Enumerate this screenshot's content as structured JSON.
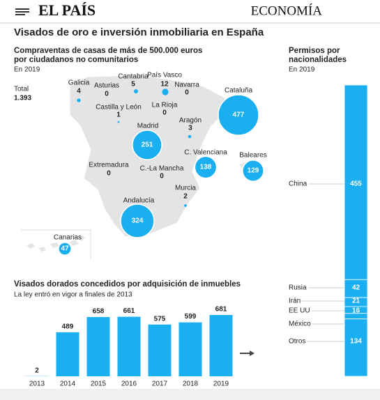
{
  "header": {
    "logo": "EL PAÍS",
    "section": "ECONOMÍA"
  },
  "title": "Visados de oro e inversión inmobiliaria en España",
  "chart_data": [
    {
      "type": "bubble-map",
      "title": "Compraventas de casas de más de 500.000 euros por ciudadanos no comunitarios",
      "subtitle": "En 2019",
      "total": {
        "label": "Total",
        "value": 1393,
        "value_label": "1.393"
      },
      "categories": [
        "Galicia",
        "Asturias",
        "Cantabria",
        "País Vasco",
        "Navarra",
        "Cataluña",
        "Castilla y León",
        "La Rioja",
        "Aragón",
        "Madrid",
        "C. Valenciana",
        "Baleares",
        "Extremadura",
        "C.-La Mancha",
        "Murcia",
        "Andalucía",
        "Canarias"
      ],
      "values": [
        4,
        0,
        5,
        12,
        0,
        477,
        1,
        0,
        3,
        251,
        138,
        129,
        0,
        0,
        2,
        324,
        47
      ],
      "color": "#1aaff0"
    },
    {
      "type": "stacked-bar",
      "title": "Permisos por nacionalidades",
      "subtitle": "En 2019",
      "categories": [
        "China",
        "Rusia",
        "Irán",
        "EE UU",
        "México",
        "Otros"
      ],
      "values": [
        455,
        42,
        21,
        16,
        13,
        134
      ],
      "color": "#1aaff0"
    },
    {
      "type": "bar",
      "title": "Visados dorados concedidos por adquisición de inmuebles",
      "subtitle": "La ley entró en vigor a finales de 2013",
      "categories": [
        "2013",
        "2014",
        "2015",
        "2016",
        "2017",
        "2018",
        "2019"
      ],
      "values": [
        2,
        489,
        658,
        661,
        575,
        599,
        681
      ],
      "color": "#1aaff0"
    }
  ]
}
